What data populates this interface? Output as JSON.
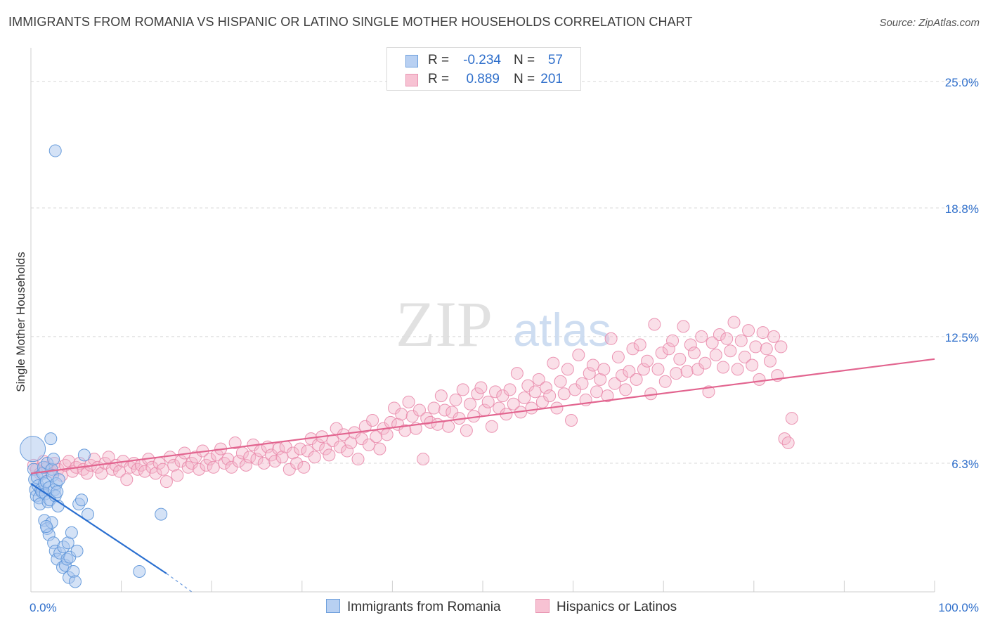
{
  "header": {
    "title": "IMMIGRANTS FROM ROMANIA VS HISPANIC OR LATINO SINGLE MOTHER HOUSEHOLDS CORRELATION CHART",
    "source": "Source: ZipAtlas.com"
  },
  "legend": {
    "rows": [
      {
        "r_label": "R =",
        "r_value": "-0.234",
        "n_label": "N =",
        "n_value": "57"
      },
      {
        "r_label": "R =",
        "r_value": "0.889",
        "n_label": "N =",
        "n_value": "201"
      }
    ]
  },
  "watermark": {
    "zip": "ZIP",
    "atlas": "atlas"
  },
  "colors": {
    "blue_fill": "#a9c6ee",
    "blue_stroke": "#5b93d8",
    "blue_line": "#2a6fd0",
    "pink_fill": "#f4b7cb",
    "pink_stroke": "#e98aab",
    "pink_line": "#e2648f",
    "tick_label": "#2f6fcb",
    "grid": "#d8d8d8"
  },
  "chart_data": {
    "type": "scatter",
    "title": "IMMIGRANTS FROM ROMANIA VS HISPANIC OR LATINO SINGLE MOTHER HOUSEHOLDS CORRELATION CHART",
    "xlabel": "",
    "ylabel": "Single Mother Households",
    "xlim": [
      0,
      100
    ],
    "ylim": [
      0,
      26.3
    ],
    "y_ticks": [
      6.3,
      12.5,
      18.8,
      25.0
    ],
    "y_tick_labels": [
      "6.3%",
      "12.5%",
      "18.8%",
      "25.0%"
    ],
    "x_tick_labels": [
      "0.0%",
      "100.0%"
    ],
    "legend_position": "top-center",
    "series": [
      {
        "name": "Immigrants from Romania",
        "r": -0.234,
        "n": 57,
        "trend": {
          "x_start": 0,
          "y_start": 5.3,
          "x_end": 15,
          "y_end": 0.9,
          "dash_to_x": 17.8,
          "dash_to_y": 0.0
        },
        "points": [
          [
            0.2,
            7.0
          ],
          [
            0.3,
            6.0
          ],
          [
            0.4,
            5.5
          ],
          [
            0.5,
            5.0
          ],
          [
            0.6,
            4.7
          ],
          [
            0.7,
            5.6
          ],
          [
            0.8,
            5.2
          ],
          [
            0.9,
            4.6
          ],
          [
            1.0,
            4.3
          ],
          [
            1.1,
            5.0
          ],
          [
            1.2,
            4.9
          ],
          [
            1.3,
            5.8
          ],
          [
            1.4,
            6.1
          ],
          [
            1.5,
            5.3
          ],
          [
            1.6,
            4.8
          ],
          [
            1.7,
            5.4
          ],
          [
            1.8,
            6.3
          ],
          [
            1.9,
            4.4
          ],
          [
            2.0,
            5.1
          ],
          [
            2.1,
            4.5
          ],
          [
            2.2,
            7.5
          ],
          [
            2.3,
            6.0
          ],
          [
            2.4,
            5.7
          ],
          [
            2.5,
            6.5
          ],
          [
            2.6,
            5.0
          ],
          [
            2.7,
            4.7
          ],
          [
            2.8,
            5.3
          ],
          [
            2.9,
            4.9
          ],
          [
            3.0,
            4.2
          ],
          [
            3.1,
            5.5
          ],
          [
            1.5,
            3.5
          ],
          [
            1.8,
            3.1
          ],
          [
            2.0,
            2.8
          ],
          [
            2.3,
            3.4
          ],
          [
            2.5,
            2.4
          ],
          [
            2.7,
            2.0
          ],
          [
            2.9,
            1.6
          ],
          [
            3.2,
            1.9
          ],
          [
            3.5,
            1.2
          ],
          [
            3.6,
            2.2
          ],
          [
            3.8,
            1.3
          ],
          [
            4.0,
            1.6
          ],
          [
            4.1,
            2.4
          ],
          [
            4.2,
            0.7
          ],
          [
            4.3,
            1.7
          ],
          [
            4.5,
            2.9
          ],
          [
            4.7,
            1.0
          ],
          [
            4.9,
            0.5
          ],
          [
            5.1,
            2.0
          ],
          [
            5.3,
            4.3
          ],
          [
            5.6,
            4.5
          ],
          [
            5.9,
            6.7
          ],
          [
            6.3,
            3.8
          ],
          [
            12.0,
            1.0
          ],
          [
            14.4,
            3.8
          ],
          [
            2.7,
            21.6
          ],
          [
            1.7,
            3.2
          ]
        ]
      },
      {
        "name": "Hispanics or Latinos",
        "r": 0.889,
        "n": 201,
        "trend": {
          "x_start": 0,
          "y_start": 5.8,
          "x_end": 100,
          "y_end": 11.4
        },
        "points": [
          [
            0.3,
            6.2
          ],
          [
            0.6,
            6.0
          ],
          [
            1.0,
            5.8
          ],
          [
            1.4,
            6.4
          ],
          [
            1.8,
            6.1
          ],
          [
            2.2,
            5.9
          ],
          [
            2.6,
            6.3
          ],
          [
            3.0,
            6.0
          ],
          [
            3.4,
            5.7
          ],
          [
            3.8,
            6.2
          ],
          [
            4.2,
            6.4
          ],
          [
            4.6,
            5.9
          ],
          [
            5.0,
            6.1
          ],
          [
            5.4,
            6.3
          ],
          [
            5.8,
            6.0
          ],
          [
            6.2,
            5.8
          ],
          [
            6.6,
            6.2
          ],
          [
            7.0,
            6.5
          ],
          [
            7.4,
            6.1
          ],
          [
            7.8,
            5.8
          ],
          [
            8.2,
            6.3
          ],
          [
            8.6,
            6.6
          ],
          [
            9.0,
            6.0
          ],
          [
            9.4,
            6.2
          ],
          [
            9.8,
            5.9
          ],
          [
            10.2,
            6.4
          ],
          [
            10.6,
            5.5
          ],
          [
            11.0,
            6.1
          ],
          [
            11.4,
            6.3
          ],
          [
            11.8,
            6.0
          ],
          [
            12.2,
            6.2
          ],
          [
            12.6,
            5.9
          ],
          [
            13.0,
            6.5
          ],
          [
            13.4,
            6.1
          ],
          [
            13.8,
            5.8
          ],
          [
            14.2,
            6.3
          ],
          [
            14.6,
            6.0
          ],
          [
            15.0,
            5.4
          ],
          [
            15.4,
            6.6
          ],
          [
            15.8,
            6.2
          ],
          [
            16.2,
            5.7
          ],
          [
            16.6,
            6.4
          ],
          [
            17.0,
            6.8
          ],
          [
            17.4,
            6.1
          ],
          [
            17.8,
            6.3
          ],
          [
            18.2,
            6.6
          ],
          [
            18.6,
            6.0
          ],
          [
            19.0,
            6.9
          ],
          [
            19.4,
            6.2
          ],
          [
            19.8,
            6.5
          ],
          [
            20.2,
            6.1
          ],
          [
            20.6,
            6.7
          ],
          [
            21.0,
            7.0
          ],
          [
            21.4,
            6.3
          ],
          [
            21.8,
            6.5
          ],
          [
            22.2,
            6.1
          ],
          [
            22.6,
            7.3
          ],
          [
            23.0,
            6.4
          ],
          [
            23.4,
            6.8
          ],
          [
            23.8,
            6.2
          ],
          [
            24.2,
            6.6
          ],
          [
            24.6,
            7.2
          ],
          [
            25.0,
            6.5
          ],
          [
            25.4,
            6.9
          ],
          [
            25.8,
            6.3
          ],
          [
            26.2,
            7.1
          ],
          [
            26.6,
            6.7
          ],
          [
            27.0,
            6.4
          ],
          [
            27.4,
            7.0
          ],
          [
            27.8,
            6.6
          ],
          [
            28.2,
            7.1
          ],
          [
            28.6,
            6.0
          ],
          [
            29.0,
            6.8
          ],
          [
            29.4,
            6.3
          ],
          [
            29.8,
            7.0
          ],
          [
            30.2,
            6.1
          ],
          [
            30.6,
            6.9
          ],
          [
            31.0,
            7.5
          ],
          [
            31.4,
            6.6
          ],
          [
            31.8,
            7.2
          ],
          [
            32.2,
            7.6
          ],
          [
            32.6,
            7.0
          ],
          [
            33.0,
            6.7
          ],
          [
            33.4,
            7.4
          ],
          [
            33.8,
            8.0
          ],
          [
            34.2,
            7.1
          ],
          [
            34.6,
            7.7
          ],
          [
            35.0,
            6.9
          ],
          [
            35.4,
            7.3
          ],
          [
            35.8,
            7.8
          ],
          [
            36.2,
            6.5
          ],
          [
            36.6,
            7.5
          ],
          [
            37.0,
            8.1
          ],
          [
            37.4,
            7.2
          ],
          [
            37.8,
            8.4
          ],
          [
            38.2,
            7.6
          ],
          [
            38.6,
            7.0
          ],
          [
            39.0,
            8.0
          ],
          [
            39.4,
            7.7
          ],
          [
            39.8,
            8.3
          ],
          [
            40.2,
            9.0
          ],
          [
            40.6,
            8.2
          ],
          [
            41.0,
            8.7
          ],
          [
            41.4,
            7.9
          ],
          [
            41.8,
            9.3
          ],
          [
            42.2,
            8.6
          ],
          [
            42.6,
            8.0
          ],
          [
            43.0,
            8.9
          ],
          [
            43.4,
            6.5
          ],
          [
            43.8,
            8.5
          ],
          [
            44.2,
            8.3
          ],
          [
            44.6,
            9.0
          ],
          [
            45.0,
            8.2
          ],
          [
            45.4,
            9.6
          ],
          [
            45.8,
            8.9
          ],
          [
            46.2,
            8.1
          ],
          [
            46.6,
            8.8
          ],
          [
            47.0,
            9.4
          ],
          [
            47.4,
            8.5
          ],
          [
            47.8,
            9.9
          ],
          [
            48.2,
            7.9
          ],
          [
            48.6,
            9.2
          ],
          [
            49.0,
            8.6
          ],
          [
            49.4,
            9.7
          ],
          [
            49.8,
            10.0
          ],
          [
            50.2,
            8.9
          ],
          [
            50.6,
            9.3
          ],
          [
            51.0,
            8.1
          ],
          [
            51.4,
            9.8
          ],
          [
            51.8,
            9.0
          ],
          [
            52.2,
            9.6
          ],
          [
            52.6,
            8.7
          ],
          [
            53.0,
            9.9
          ],
          [
            53.4,
            9.2
          ],
          [
            53.8,
            10.7
          ],
          [
            54.2,
            8.8
          ],
          [
            54.6,
            9.5
          ],
          [
            55.0,
            10.1
          ],
          [
            55.4,
            9.0
          ],
          [
            55.8,
            9.8
          ],
          [
            56.2,
            10.4
          ],
          [
            56.6,
            9.3
          ],
          [
            57.0,
            10.0
          ],
          [
            57.4,
            9.6
          ],
          [
            57.8,
            11.2
          ],
          [
            58.2,
            9.0
          ],
          [
            58.6,
            10.3
          ],
          [
            59.0,
            9.7
          ],
          [
            59.4,
            10.9
          ],
          [
            59.8,
            8.4
          ],
          [
            60.2,
            9.9
          ],
          [
            60.6,
            11.6
          ],
          [
            61.0,
            10.2
          ],
          [
            61.4,
            9.4
          ],
          [
            61.8,
            10.7
          ],
          [
            62.2,
            11.1
          ],
          [
            62.6,
            9.8
          ],
          [
            63.0,
            10.4
          ],
          [
            63.4,
            10.9
          ],
          [
            63.8,
            9.6
          ],
          [
            64.2,
            12.4
          ],
          [
            64.6,
            10.2
          ],
          [
            65.0,
            11.5
          ],
          [
            65.4,
            10.6
          ],
          [
            65.8,
            9.9
          ],
          [
            66.2,
            10.8
          ],
          [
            66.6,
            11.9
          ],
          [
            67.0,
            10.4
          ],
          [
            67.4,
            12.1
          ],
          [
            67.8,
            10.9
          ],
          [
            68.2,
            11.3
          ],
          [
            68.6,
            9.7
          ],
          [
            69.0,
            13.1
          ],
          [
            69.4,
            10.9
          ],
          [
            69.8,
            11.7
          ],
          [
            70.2,
            10.3
          ],
          [
            70.6,
            11.9
          ],
          [
            71.0,
            12.3
          ],
          [
            71.4,
            10.7
          ],
          [
            71.8,
            11.4
          ],
          [
            72.2,
            13.0
          ],
          [
            72.6,
            10.8
          ],
          [
            73.0,
            12.1
          ],
          [
            73.4,
            11.7
          ],
          [
            73.8,
            10.9
          ],
          [
            74.2,
            12.5
          ],
          [
            74.6,
            11.2
          ],
          [
            75.0,
            9.8
          ],
          [
            75.4,
            12.2
          ],
          [
            75.8,
            11.6
          ],
          [
            76.2,
            12.6
          ],
          [
            76.6,
            11.0
          ],
          [
            77.0,
            12.4
          ],
          [
            77.4,
            11.8
          ],
          [
            77.8,
            13.2
          ],
          [
            78.2,
            10.9
          ],
          [
            78.6,
            12.3
          ],
          [
            79.0,
            11.5
          ],
          [
            79.4,
            12.8
          ],
          [
            79.8,
            11.1
          ],
          [
            80.2,
            12.0
          ],
          [
            80.6,
            10.4
          ],
          [
            81.0,
            12.7
          ],
          [
            81.4,
            11.9
          ],
          [
            81.8,
            11.3
          ],
          [
            82.2,
            12.5
          ],
          [
            82.6,
            10.6
          ],
          [
            83.0,
            12.0
          ],
          [
            83.4,
            7.5
          ],
          [
            83.8,
            7.3
          ],
          [
            84.2,
            8.5
          ]
        ]
      }
    ]
  },
  "bottom_legend": [
    "Immigrants from Romania",
    "Hispanics or Latinos"
  ]
}
